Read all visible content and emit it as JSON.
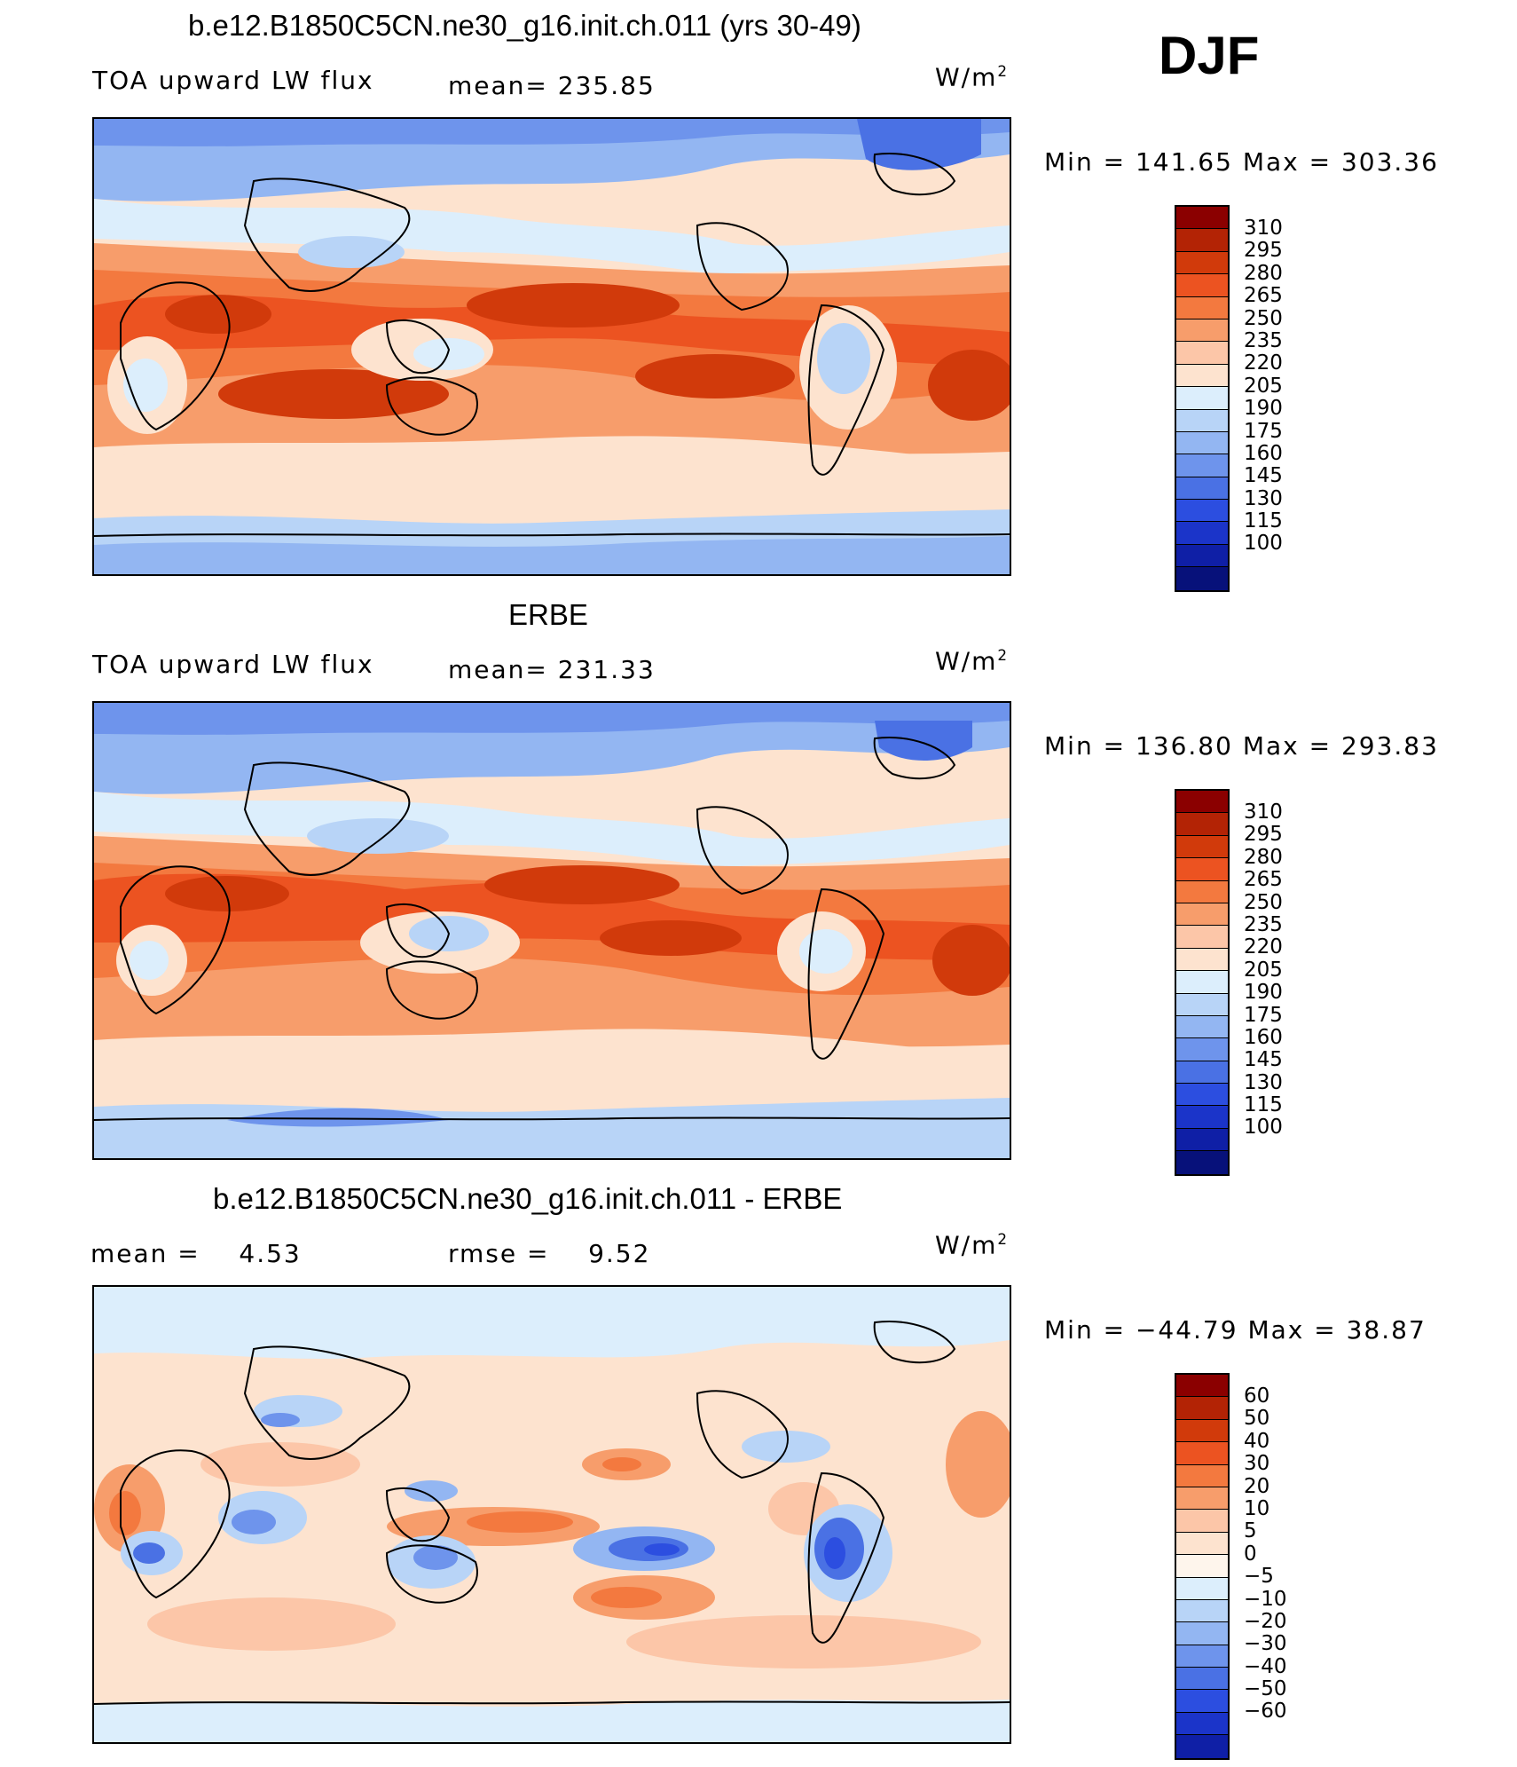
{
  "season": "DJF",
  "colors": {
    "c17": [
      "#8b0000",
      "#b32305",
      "#d13a0b",
      "#ec5321",
      "#f3793f",
      "#f79d6b",
      "#fcc6a8",
      "#fde3cf",
      "#dceefc",
      "#b8d4f7",
      "#93b6f2",
      "#6e94ec",
      "#4a71e4",
      "#2c4ee0",
      "#1b34c9",
      "#0f1fa6",
      "#07117a"
    ],
    "c18": [
      "#8b0000",
      "#b32305",
      "#d13a0b",
      "#ec5321",
      "#f3793f",
      "#f79d6b",
      "#fcc6a8",
      "#fde3cf",
      "#fef5ec",
      "#dceefc",
      "#b8d4f7",
      "#93b6f2",
      "#6e94ec",
      "#4a71e4",
      "#2c4ee0",
      "#1b34c9",
      "#0f1fa6",
      "#07117a"
    ]
  },
  "panels": [
    {
      "title": "b.e12.B1850C5CN.ne30_g16.init.ch.011 (yrs 30-49)",
      "left_label": "TOA upward LW flux",
      "mid_label": "mean=",
      "mid_value": "235.85",
      "unit_base": "W/m",
      "unit_sup": "2",
      "minmax": "Min = 141.65 Max = 303.36",
      "colorbar_labels": [
        "310",
        "295",
        "280",
        "265",
        "250",
        "235",
        "220",
        "205",
        "190",
        "175",
        "160",
        "145",
        "130",
        "115",
        "100"
      ]
    },
    {
      "title": "ERBE",
      "left_label": "TOA upward LW flux",
      "mid_label": "mean=",
      "mid_value": "231.33",
      "unit_base": "W/m",
      "unit_sup": "2",
      "minmax": "Min = 136.80 Max = 293.83",
      "colorbar_labels": [
        "310",
        "295",
        "280",
        "265",
        "250",
        "235",
        "220",
        "205",
        "190",
        "175",
        "160",
        "145",
        "130",
        "115",
        "100"
      ]
    },
    {
      "title": "b.e12.B1850C5CN.ne30_g16.init.ch.011 - ERBE",
      "left_label": "mean =",
      "left_value": "4.53",
      "mid_label": "rmse =",
      "mid_value": "9.52",
      "unit_base": "W/m",
      "unit_sup": "2",
      "minmax": "Min = −44.79 Max = 38.87",
      "colorbar_labels": [
        "60",
        "50",
        "40",
        "30",
        "20",
        "10",
        "5",
        "0",
        "−5",
        "−10",
        "−20",
        "−30",
        "−40",
        "−50",
        "−60"
      ]
    }
  ]
}
